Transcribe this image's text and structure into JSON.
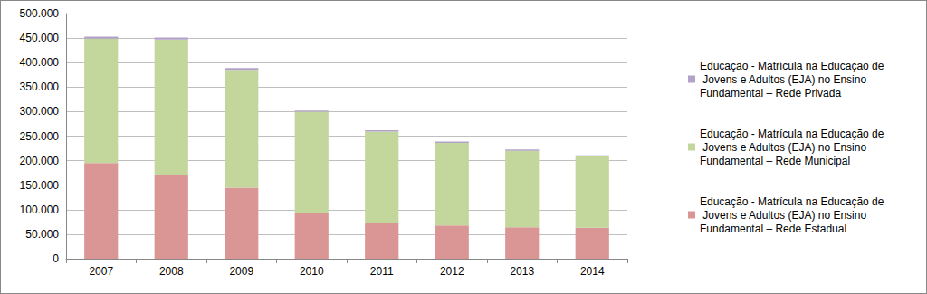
{
  "chart_data": {
    "type": "bar",
    "stacked": true,
    "grid": true,
    "legend": "right",
    "categories": [
      "2007",
      "2008",
      "2009",
      "2010",
      "2011",
      "2012",
      "2013",
      "2014"
    ],
    "series": [
      {
        "name": "Educação - Matrícula na Educação de Jovens e Adultos (EJA) no Ensino Fundamental – Rede Estadual",
        "color": "#d99694",
        "values": [
          195000,
          170000,
          145000,
          93000,
          72000,
          68000,
          64000,
          63000
        ]
      },
      {
        "name": "Educação - Matrícula na Educação de Jovens e Adultos (EJA) no Ensino Fundamental – Rede Municipal",
        "color": "#c3d69b",
        "values": [
          254000,
          277000,
          240000,
          207000,
          187000,
          168000,
          156000,
          146000
        ]
      },
      {
        "name": "Educação - Matrícula na Educação de Jovens e Adultos (EJA) no Ensino Fundamental – Rede Privada",
        "color": "#b3a2c7",
        "values": [
          4000,
          4000,
          4000,
          2000,
          3000,
          3000,
          3000,
          2000
        ]
      }
    ],
    "ylim": [
      0,
      500000
    ],
    "yticks": [
      0,
      {
        "value": 50000,
        "label": "50.000"
      },
      {
        "value": 100000,
        "label": "100.000"
      },
      {
        "value": 150000,
        "label": "150.000"
      },
      {
        "value": 200000,
        "label": "200.000"
      },
      {
        "value": 250000,
        "label": "250.000"
      },
      {
        "value": 300000,
        "label": "300.000"
      },
      {
        "value": 350000,
        "label": "350.000"
      },
      {
        "value": 400000,
        "label": "400.000"
      },
      {
        "value": 450000,
        "label": "450.000"
      },
      {
        "value": 500000,
        "label": "500.000"
      }
    ]
  }
}
